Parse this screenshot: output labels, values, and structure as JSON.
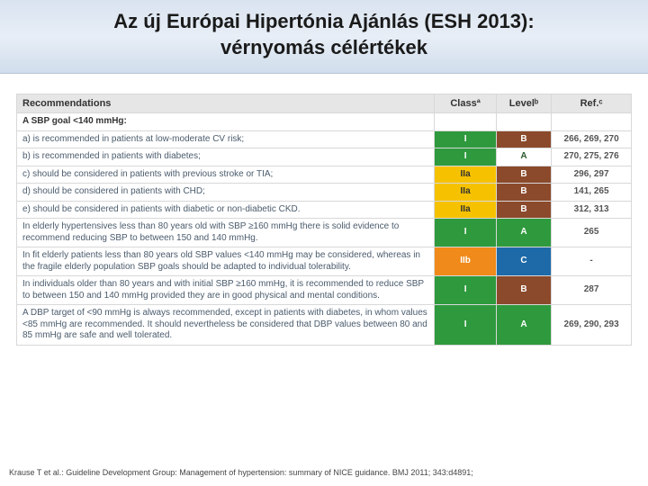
{
  "title_line1": "Az új Európai Hipertónia Ajánlás (ESH 2013):",
  "title_line2": "vérnyomás célértékek",
  "headers": {
    "rec": "Recommendations",
    "class": "Classª",
    "level": "Levelᵇ",
    "ref": "Ref.ᶜ"
  },
  "subhead": "A SBP goal <140 mmHg:",
  "colors": {
    "class_green": "#2e9a3d",
    "class_yellow": "#f6c200",
    "class_orange": "#f08a1a",
    "level_a_white": "#ffffff",
    "level_a_green": "#2e9a3d",
    "level_b_brown": "#8b4a2b",
    "level_c_blue": "#1e6aa8",
    "text_white": "#ffffff",
    "text_dark": "#2b5a2b"
  },
  "rows": [
    {
      "text": "a) is recommended in patients at low-moderate CV risk;",
      "class": "I",
      "class_bg": "class_green",
      "level": "B",
      "level_bg": "level_b_brown",
      "level_fg": "text_white",
      "ref": "266, 269, 270"
    },
    {
      "text": "b) is recommended in patients with diabetes;",
      "class": "I",
      "class_bg": "class_green",
      "level": "A",
      "level_bg": "level_a_white",
      "level_fg": "text_dark",
      "ref": "270, 275, 276"
    },
    {
      "text": "c) should be considered in patients with previous stroke or TIA;",
      "class": "IIa",
      "class_bg": "class_yellow",
      "level": "B",
      "level_bg": "level_b_brown",
      "level_fg": "text_white",
      "ref": "296, 297"
    },
    {
      "text": "d) should be considered in patients with CHD;",
      "class": "IIa",
      "class_bg": "class_yellow",
      "level": "B",
      "level_bg": "level_b_brown",
      "level_fg": "text_white",
      "ref": "141, 265"
    },
    {
      "text": "e) should be considered in patients with diabetic or non-diabetic CKD.",
      "class": "IIa",
      "class_bg": "class_yellow",
      "level": "B",
      "level_bg": "level_b_brown",
      "level_fg": "text_white",
      "ref": "312, 313"
    },
    {
      "text": "In elderly hypertensives less than 80 years old with SBP ≥160 mmHg there is solid evidence to recommend reducing SBP to between 150 and 140 mmHg.",
      "class": "I",
      "class_bg": "class_green",
      "level": "A",
      "level_bg": "level_a_green",
      "level_fg": "text_white",
      "ref": "265"
    },
    {
      "text": "In fit elderly patients less than 80 years old SBP values <140 mmHg may be considered, whereas in the fragile elderly population SBP goals should be adapted to individual tolerability.",
      "class": "IIb",
      "class_bg": "class_orange",
      "level": "C",
      "level_bg": "level_c_blue",
      "level_fg": "text_white",
      "ref": "-"
    },
    {
      "text": "In individuals older than 80 years and with initial SBP ≥160 mmHg, it is recommended to reduce SBP to between 150 and 140 mmHg provided they are in good physical and mental conditions.",
      "class": "I",
      "class_bg": "class_green",
      "level": "B",
      "level_bg": "level_b_brown",
      "level_fg": "text_white",
      "ref": "287"
    },
    {
      "text": "A DBP target of <90 mmHg is always recommended, except in patients with diabetes, in whom values <85 mmHg are recommended. It should nevertheless be considered that DBP values between 80 and 85 mmHg are safe and well tolerated.",
      "class": "I",
      "class_bg": "class_green",
      "level": "A",
      "level_bg": "level_a_green",
      "level_fg": "text_white",
      "ref": "269, 290, 293"
    }
  ],
  "citation": "Krause T et al.: Guideline Development Group: Management of hypertension: summary of NICE guidance. BMJ 2011; 343:d4891;"
}
